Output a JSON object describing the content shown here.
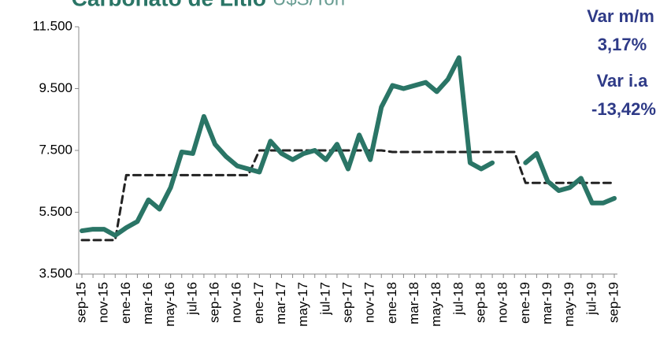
{
  "chart_data": {
    "type": "line",
    "title": "Carbonato de Litio",
    "subtitle": "U$S/Ton",
    "annotations": [
      "Var m/m",
      "3,17%",
      "Var i.a",
      "-13,42%"
    ],
    "categories": [
      "sep-15",
      null,
      "nov-15",
      null,
      "ene-16",
      null,
      "mar-16",
      null,
      "may-16",
      null,
      "jul-16",
      null,
      "sep-16",
      null,
      "nov-16",
      null,
      "ene-17",
      null,
      "mar-17",
      null,
      "may-17",
      null,
      "jul-17",
      null,
      "sep-17",
      null,
      "nov-17",
      null,
      "ene-18",
      null,
      "mar-18",
      null,
      "may-18",
      null,
      "jul-18",
      null,
      "sep-18",
      null,
      "nov-18",
      null,
      "ene-19",
      null,
      "mar-19",
      null,
      "may-19",
      null,
      "jul-19",
      null,
      "sep-19"
    ],
    "series": [
      {
        "color": "#2a7566",
        "dashed": false,
        "values": [
          4900,
          4950,
          4950,
          4750,
          5000,
          5200,
          5900,
          5600,
          6300,
          7450,
          7400,
          8600,
          7700,
          7300,
          7000,
          6900,
          6800,
          7800,
          7400,
          7200,
          7400,
          7500,
          7200,
          7700,
          6900,
          8000,
          7200,
          8900,
          9600,
          9500,
          9600,
          9700,
          9400,
          9800,
          10500,
          7100,
          6900,
          7100,
          null,
          null,
          7100,
          7400,
          6500,
          6200,
          6300,
          6600,
          5800,
          5800,
          5950
        ]
      },
      {
        "color": "#222222",
        "dashed": true,
        "values": [
          4600,
          4600,
          4600,
          4600,
          6700,
          6700,
          6700,
          6700,
          6700,
          6700,
          6700,
          6700,
          6700,
          6700,
          6700,
          6700,
          7500,
          7500,
          7500,
          7500,
          7500,
          7500,
          7500,
          7500,
          7500,
          7500,
          7500,
          7500,
          7450,
          7450,
          7450,
          7450,
          7450,
          7450,
          7450,
          7450,
          7450,
          7450,
          7450,
          7450,
          6450,
          6450,
          6450,
          6450,
          6450,
          6450,
          6450,
          6450,
          6450
        ]
      }
    ],
    "ylim": [
      3500,
      11500
    ],
    "yticks": [
      {
        "value": 3500,
        "label": "3.500"
      },
      {
        "value": 5500,
        "label": "5.500"
      },
      {
        "value": 7500,
        "label": "7.500"
      },
      {
        "value": 9500,
        "label": "9.500"
      },
      {
        "value": 11500,
        "label": "11.500"
      }
    ],
    "grid": false
  }
}
